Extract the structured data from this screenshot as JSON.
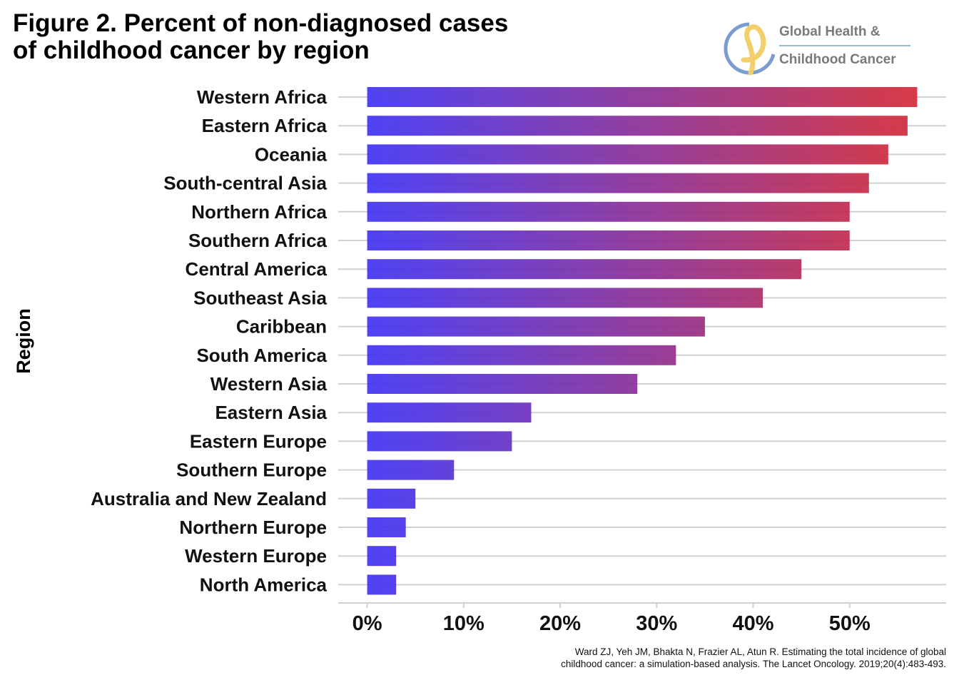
{
  "title_lines": [
    "Figure 2. Percent of non-diagnosed cases",
    "of childhood cancer by region"
  ],
  "logo": {
    "line1": "Global Health &",
    "line2": "Childhood Cancer",
    "colors": {
      "blue": "#7b9ccf",
      "gold": "#f2cf6a"
    }
  },
  "source_lines": [
    "Ward ZJ, Yeh JM, Bhakta N, Frazier AL, Atun R. Estimating the total incidence of global",
    "childhood cancer: a simulation-based analysis. The Lancet Oncology. 2019;20(4):483-493."
  ],
  "chart_data": {
    "type": "bar",
    "orientation": "horizontal",
    "categories": [
      "Western Africa",
      "Eastern Africa",
      "Oceania",
      "South-central Asia",
      "Northern Africa",
      "Southern Africa",
      "Central America",
      "Southeast Asia",
      "Caribbean",
      "South America",
      "Western Asia",
      "Eastern Asia",
      "Eastern Europe",
      "Southern Europe",
      "Australia and New Zealand",
      "Northern Europe",
      "Western Europe",
      "North America"
    ],
    "values": [
      57,
      56,
      54,
      52,
      50,
      50,
      45,
      41,
      35,
      32,
      28,
      17,
      15,
      9,
      5,
      4,
      3,
      3
    ],
    "ylabel": "Region",
    "xlabel": "",
    "xlim": [
      -3,
      60
    ],
    "xticks": [
      0,
      10,
      20,
      30,
      40,
      50
    ],
    "xtick_labels": [
      "0%",
      "10%",
      "20%",
      "30%",
      "40%",
      "50%"
    ],
    "grid": "horizontal",
    "gradient": {
      "start": "#4033f5",
      "end": "#d42a36"
    },
    "gridline_color": "#d0d0d0"
  }
}
